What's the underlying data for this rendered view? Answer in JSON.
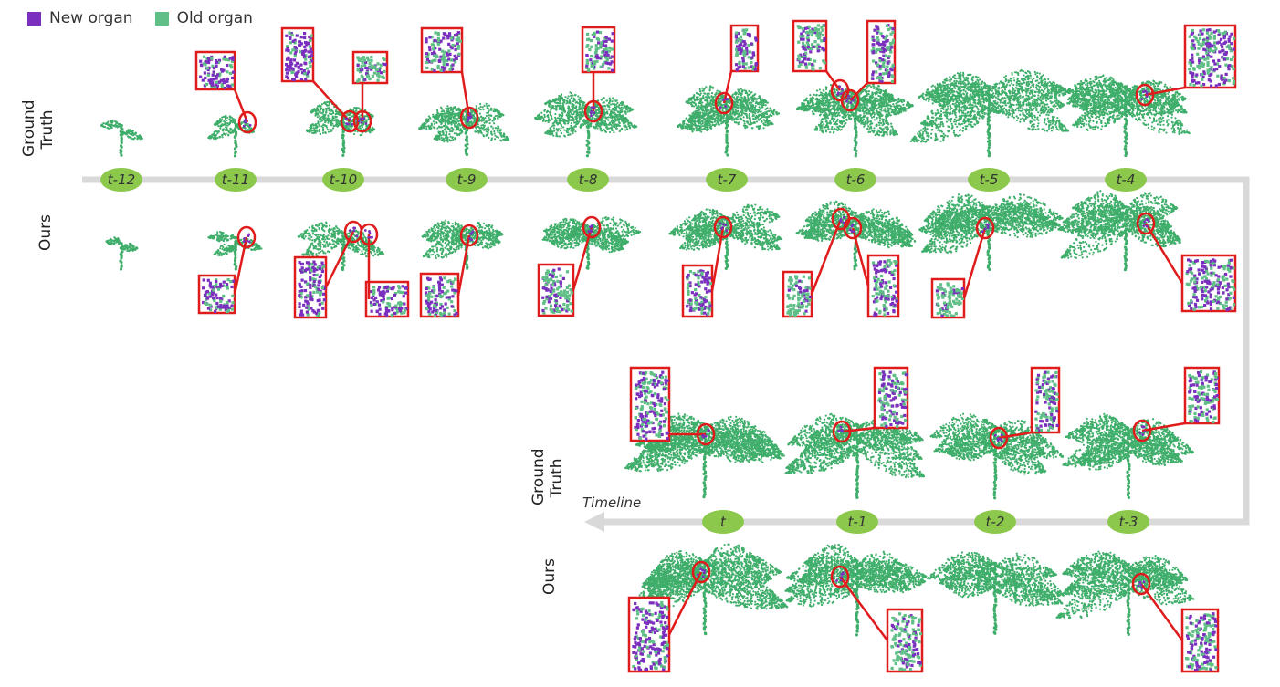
{
  "legend": {
    "new_label": "New organ",
    "old_label": "Old organ",
    "new_color": "#7b2fbe",
    "old_color": "#5fbf87"
  },
  "row_labels": {
    "gt_top": "Ground\nTruth",
    "ours_top": "Ours",
    "gt_bottom": "Ground\nTruth",
    "ours_bottom": "Ours"
  },
  "timeline_word": "Timeline",
  "colors": {
    "axis": "#d9d9d9",
    "node": "#8cc84b",
    "highlight": "#e01b1b",
    "plant": "#3fae6b"
  },
  "top_steps": [
    {
      "label": "t-12"
    },
    {
      "label": "t-11"
    },
    {
      "label": "t-10"
    },
    {
      "label": "t-9"
    },
    {
      "label": "t-8"
    },
    {
      "label": "t-7"
    },
    {
      "label": "t-6"
    },
    {
      "label": "t-5"
    },
    {
      "label": "t-4"
    }
  ],
  "bottom_steps": [
    {
      "label": "t"
    },
    {
      "label": "t-1"
    },
    {
      "label": "t-2"
    },
    {
      "label": "t-3"
    }
  ]
}
